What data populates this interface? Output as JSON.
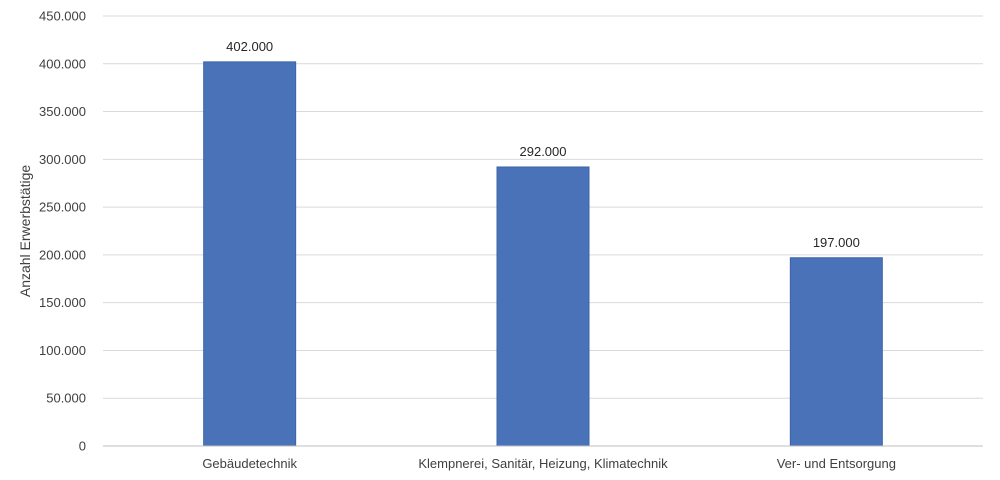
{
  "chart_data": {
    "type": "bar",
    "title": "",
    "xlabel": "",
    "ylabel": "Anzahl Erwerbstätige",
    "categories": [
      "Gebäudetechnik",
      "Klempnerei, Sanitär, Heizung, Klimatechnik",
      "Ver- und Entsorgung"
    ],
    "values": [
      402000,
      292000,
      197000
    ],
    "value_labels": [
      "402.000",
      "292.000",
      "197.000"
    ],
    "ylim": [
      0,
      450000
    ],
    "yticks": [
      0,
      50000,
      100000,
      150000,
      200000,
      250000,
      300000,
      350000,
      400000,
      450000
    ],
    "ytick_labels": [
      "0",
      "50.000",
      "100.000",
      "150.000",
      "200.000",
      "250.000",
      "300.000",
      "350.000",
      "400.000",
      "450.000"
    ],
    "grid": true,
    "legend": "none",
    "colors": {
      "bar": "#4a72b8",
      "bar_edge": "#3d64a8",
      "grid": "#d9d9d9",
      "axis": "#bfbfbf"
    }
  }
}
